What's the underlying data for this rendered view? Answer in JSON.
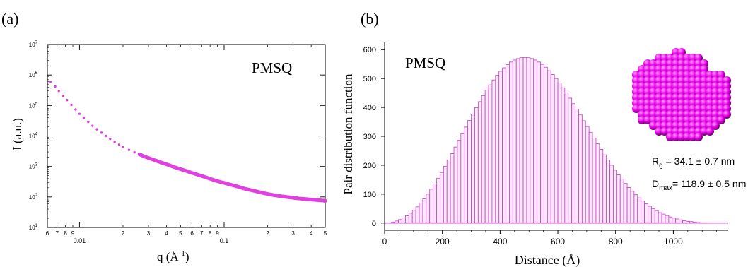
{
  "chart_data": [
    {
      "panel_label": "(a)",
      "type": "scatter",
      "annotation": "PMSQ",
      "xlabel_main": "q (Å",
      "xlabel_exp": "-1",
      "xlabel_close": ")",
      "ylabel": "I (a.u.)",
      "x_scale": "log",
      "y_scale": "log",
      "xlim": [
        0.006,
        0.5
      ],
      "ylim": [
        10,
        10000000
      ],
      "x_major_ticks": [
        {
          "value": 0.01,
          "label": "0.01"
        },
        {
          "value": 0.1,
          "label": "0.1"
        }
      ],
      "x_minor_ticks": [
        {
          "value": 0.006,
          "label": "6"
        },
        {
          "value": 0.007,
          "label": "7"
        },
        {
          "value": 0.008,
          "label": "8"
        },
        {
          "value": 0.009,
          "label": "9"
        },
        {
          "value": 0.02,
          "label": "2"
        },
        {
          "value": 0.03,
          "label": "3"
        },
        {
          "value": 0.04,
          "label": "4"
        },
        {
          "value": 0.05,
          "label": "5"
        },
        {
          "value": 0.06,
          "label": "6"
        },
        {
          "value": 0.07,
          "label": "7"
        },
        {
          "value": 0.08,
          "label": "8"
        },
        {
          "value": 0.09,
          "label": "9"
        },
        {
          "value": 0.2,
          "label": "2"
        },
        {
          "value": 0.3,
          "label": "3"
        },
        {
          "value": 0.4,
          "label": "4"
        },
        {
          "value": 0.5,
          "label": "5"
        }
      ],
      "y_ticks": [
        {
          "value": 10,
          "exp": "1"
        },
        {
          "value": 100,
          "exp": "2"
        },
        {
          "value": 1000,
          "exp": "3"
        },
        {
          "value": 10000,
          "exp": "4"
        },
        {
          "value": 100000,
          "exp": "5"
        },
        {
          "value": 1000000,
          "exp": "6"
        },
        {
          "value": 10000000,
          "exp": "7"
        }
      ],
      "y_tick_base": "10",
      "series": [
        {
          "color": "#e040e0",
          "points": [
            [
              0.0063,
              600000
            ],
            [
              0.0068,
              420000
            ],
            [
              0.0072,
              300000
            ],
            [
              0.0077,
              210000
            ],
            [
              0.0082,
              150000
            ],
            [
              0.0088,
              105000
            ],
            [
              0.0094,
              74000
            ],
            [
              0.01,
              53000
            ],
            [
              0.0107,
              39000
            ],
            [
              0.0115,
              29000
            ],
            [
              0.0123,
              21500
            ],
            [
              0.0132,
              16500
            ],
            [
              0.0142,
              12800
            ],
            [
              0.0152,
              10000
            ],
            [
              0.0163,
              8000
            ],
            [
              0.0175,
              6400
            ],
            [
              0.0188,
              5200
            ],
            [
              0.02,
              4300
            ],
            [
              0.022,
              3500
            ],
            [
              0.024,
              2900
            ],
            [
              0.026,
              2500
            ],
            [
              0.028,
              2150
            ],
            [
              0.03,
              1900
            ],
            [
              0.033,
              1620
            ],
            [
              0.036,
              1400
            ],
            [
              0.04,
              1180
            ],
            [
              0.044,
              1000
            ],
            [
              0.048,
              870
            ],
            [
              0.053,
              750
            ],
            [
              0.058,
              650
            ],
            [
              0.064,
              560
            ],
            [
              0.07,
              490
            ],
            [
              0.077,
              420
            ],
            [
              0.085,
              360
            ],
            [
              0.094,
              310
            ],
            [
              0.1,
              290
            ],
            [
              0.11,
              255
            ],
            [
              0.12,
              230
            ],
            [
              0.13,
              205
            ],
            [
              0.14,
              185
            ],
            [
              0.16,
              160
            ],
            [
              0.18,
              140
            ],
            [
              0.2,
              125
            ],
            [
              0.22,
              115
            ],
            [
              0.25,
              105
            ],
            [
              0.28,
              98
            ],
            [
              0.31,
              92
            ],
            [
              0.35,
              87
            ],
            [
              0.39,
              83
            ],
            [
              0.43,
              80
            ],
            [
              0.47,
              77
            ],
            [
              0.5,
              75
            ]
          ]
        }
      ]
    },
    {
      "panel_label": "(b)",
      "type": "bar",
      "annotation": "PMSQ",
      "xlabel": "Distance (Å)",
      "ylabel": "Pair distribution function",
      "xlim": [
        0,
        1190
      ],
      "ylim": [
        -25,
        625
      ],
      "x_ticks": [
        0,
        200,
        400,
        600,
        800,
        1000
      ],
      "y_ticks": [
        0,
        100,
        200,
        300,
        400,
        500,
        600
      ],
      "bar_color": "#c23ec2",
      "bar_fill": "#fbe9fb",
      "bar_width": 12,
      "bars": [
        {
          "x": 0,
          "value": 0
        },
        {
          "x": 12,
          "value": 1
        },
        {
          "x": 24,
          "value": 3
        },
        {
          "x": 36,
          "value": 7
        },
        {
          "x": 48,
          "value": 12
        },
        {
          "x": 60,
          "value": 18
        },
        {
          "x": 72,
          "value": 25
        },
        {
          "x": 84,
          "value": 34
        },
        {
          "x": 96,
          "value": 44
        },
        {
          "x": 108,
          "value": 56
        },
        {
          "x": 120,
          "value": 69
        },
        {
          "x": 132,
          "value": 84
        },
        {
          "x": 144,
          "value": 100
        },
        {
          "x": 156,
          "value": 117
        },
        {
          "x": 168,
          "value": 135
        },
        {
          "x": 180,
          "value": 155
        },
        {
          "x": 192,
          "value": 175
        },
        {
          "x": 204,
          "value": 196
        },
        {
          "x": 216,
          "value": 218
        },
        {
          "x": 228,
          "value": 240
        },
        {
          "x": 240,
          "value": 263
        },
        {
          "x": 252,
          "value": 286
        },
        {
          "x": 264,
          "value": 309
        },
        {
          "x": 276,
          "value": 332
        },
        {
          "x": 288,
          "value": 355
        },
        {
          "x": 300,
          "value": 377
        },
        {
          "x": 312,
          "value": 399
        },
        {
          "x": 324,
          "value": 420
        },
        {
          "x": 336,
          "value": 441
        },
        {
          "x": 348,
          "value": 460
        },
        {
          "x": 360,
          "value": 478
        },
        {
          "x": 372,
          "value": 495
        },
        {
          "x": 384,
          "value": 511
        },
        {
          "x": 396,
          "value": 525
        },
        {
          "x": 408,
          "value": 537
        },
        {
          "x": 420,
          "value": 548
        },
        {
          "x": 432,
          "value": 557
        },
        {
          "x": 444,
          "value": 564
        },
        {
          "x": 456,
          "value": 569
        },
        {
          "x": 468,
          "value": 572
        },
        {
          "x": 480,
          "value": 573
        },
        {
          "x": 492,
          "value": 572
        },
        {
          "x": 504,
          "value": 569
        },
        {
          "x": 516,
          "value": 564
        },
        {
          "x": 528,
          "value": 557
        },
        {
          "x": 540,
          "value": 549
        },
        {
          "x": 552,
          "value": 539
        },
        {
          "x": 564,
          "value": 527
        },
        {
          "x": 576,
          "value": 514
        },
        {
          "x": 588,
          "value": 500
        },
        {
          "x": 600,
          "value": 484
        },
        {
          "x": 612,
          "value": 468
        },
        {
          "x": 624,
          "value": 450
        },
        {
          "x": 636,
          "value": 432
        },
        {
          "x": 648,
          "value": 413
        },
        {
          "x": 660,
          "value": 394
        },
        {
          "x": 672,
          "value": 374
        },
        {
          "x": 684,
          "value": 354
        },
        {
          "x": 696,
          "value": 334
        },
        {
          "x": 708,
          "value": 314
        },
        {
          "x": 720,
          "value": 294
        },
        {
          "x": 732,
          "value": 274
        },
        {
          "x": 744,
          "value": 255
        },
        {
          "x": 756,
          "value": 236
        },
        {
          "x": 768,
          "value": 218
        },
        {
          "x": 780,
          "value": 200
        },
        {
          "x": 792,
          "value": 183
        },
        {
          "x": 804,
          "value": 167
        },
        {
          "x": 816,
          "value": 152
        },
        {
          "x": 828,
          "value": 137
        },
        {
          "x": 840,
          "value": 123
        },
        {
          "x": 852,
          "value": 110
        },
        {
          "x": 864,
          "value": 98
        },
        {
          "x": 876,
          "value": 87
        },
        {
          "x": 888,
          "value": 76
        },
        {
          "x": 900,
          "value": 67
        },
        {
          "x": 912,
          "value": 58
        },
        {
          "x": 924,
          "value": 50
        },
        {
          "x": 936,
          "value": 43
        },
        {
          "x": 948,
          "value": 36
        },
        {
          "x": 960,
          "value": 31
        },
        {
          "x": 972,
          "value": 26
        },
        {
          "x": 984,
          "value": 21
        },
        {
          "x": 996,
          "value": 17
        },
        {
          "x": 1008,
          "value": 14
        },
        {
          "x": 1020,
          "value": 11
        },
        {
          "x": 1032,
          "value": 8
        },
        {
          "x": 1044,
          "value": 6
        },
        {
          "x": 1056,
          "value": 5
        },
        {
          "x": 1068,
          "value": 3
        },
        {
          "x": 1080,
          "value": 2
        },
        {
          "x": 1092,
          "value": 1
        },
        {
          "x": 1104,
          "value": 1
        },
        {
          "x": 1116,
          "value": 0
        },
        {
          "x": 1128,
          "value": 0
        }
      ],
      "inset": {
        "model_color": "#e600e6",
        "rg_symbol": "R",
        "rg_sub": "g",
        "rg_value": " = 34.1 ± 0.7 nm",
        "dmax_symbol": "D",
        "dmax_sub": "max",
        "dmax_value": "= 118.9 ± 0.5 nm"
      }
    }
  ]
}
